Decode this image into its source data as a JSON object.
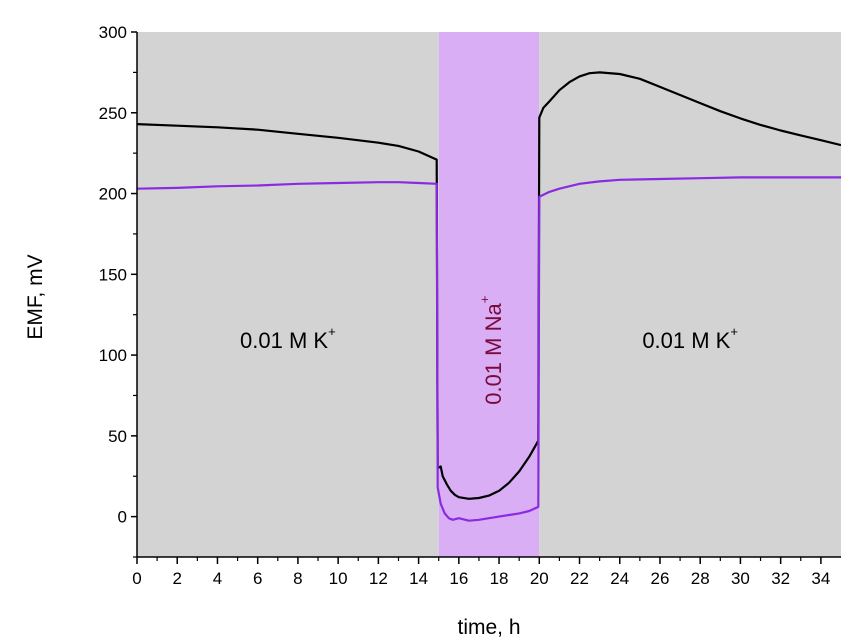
{
  "chart_data": {
    "type": "line",
    "xlabel": "time, h",
    "ylabel": "EMF, mV",
    "xlim": [
      0,
      35
    ],
    "ylim": [
      -25,
      300
    ],
    "x_ticks": [
      0,
      2,
      4,
      6,
      8,
      10,
      12,
      14,
      16,
      18,
      20,
      22,
      24,
      26,
      28,
      30,
      32,
      34
    ],
    "y_ticks": [
      0,
      50,
      100,
      150,
      200,
      250,
      300
    ],
    "grid": false,
    "regions": [
      {
        "x0": 0,
        "x1": 15,
        "label": "0.01 M K",
        "label_sup": "+",
        "color": "#d3d3d3",
        "text_color": "#000000",
        "orientation": "horizontal",
        "label_y": 108
      },
      {
        "x0": 15,
        "x1": 20,
        "label": "0.01 M Na",
        "label_sup": "+",
        "color": "#d9aef5",
        "text_color": "#7a0a3e",
        "orientation": "vertical",
        "label_y": 103
      },
      {
        "x0": 20,
        "x1": 35,
        "label": "0.01 M K",
        "label_sup": "+",
        "color": "#d3d3d3",
        "text_color": "#000000",
        "orientation": "horizontal",
        "label_y": 108
      }
    ],
    "series": [
      {
        "color": "#000000",
        "points": [
          [
            0,
            243
          ],
          [
            2,
            242
          ],
          [
            4,
            241
          ],
          [
            6,
            239.5
          ],
          [
            8,
            237
          ],
          [
            10,
            234.5
          ],
          [
            12,
            231.5
          ],
          [
            13,
            229.5
          ],
          [
            14,
            226
          ],
          [
            14.9,
            221
          ],
          [
            14.95,
            30
          ],
          [
            15.1,
            31
          ],
          [
            15.2,
            25
          ],
          [
            15.4,
            20
          ],
          [
            15.6,
            16
          ],
          [
            15.8,
            13.5
          ],
          [
            16,
            12
          ],
          [
            16.5,
            11
          ],
          [
            17,
            11.5
          ],
          [
            17.5,
            13
          ],
          [
            18,
            16
          ],
          [
            18.5,
            21
          ],
          [
            19,
            28
          ],
          [
            19.5,
            37
          ],
          [
            19.95,
            47
          ],
          [
            20,
            247
          ],
          [
            20.2,
            253
          ],
          [
            20.5,
            257
          ],
          [
            21,
            264
          ],
          [
            21.5,
            269
          ],
          [
            22,
            272.5
          ],
          [
            22.5,
            274.5
          ],
          [
            23,
            275
          ],
          [
            24,
            274
          ],
          [
            25,
            271
          ],
          [
            26,
            266
          ],
          [
            27,
            261
          ],
          [
            28,
            256
          ],
          [
            29,
            251
          ],
          [
            30,
            246.5
          ],
          [
            31,
            242.5
          ],
          [
            32,
            239
          ],
          [
            33,
            236
          ],
          [
            34,
            233
          ],
          [
            35,
            230
          ]
        ]
      },
      {
        "color": "#8a2be2",
        "points": [
          [
            0,
            203
          ],
          [
            2,
            203.5
          ],
          [
            4,
            204.5
          ],
          [
            6,
            205
          ],
          [
            8,
            206
          ],
          [
            10,
            206.5
          ],
          [
            12,
            207
          ],
          [
            13,
            207
          ],
          [
            14,
            206.5
          ],
          [
            14.9,
            206
          ],
          [
            14.95,
            18
          ],
          [
            15.1,
            8
          ],
          [
            15.3,
            2
          ],
          [
            15.5,
            -1
          ],
          [
            15.7,
            -2
          ],
          [
            16,
            -1
          ],
          [
            16.5,
            -2.5
          ],
          [
            17,
            -2
          ],
          [
            17.5,
            -1
          ],
          [
            18,
            0
          ],
          [
            18.5,
            1
          ],
          [
            19,
            2
          ],
          [
            19.5,
            3.5
          ],
          [
            19.95,
            6
          ],
          [
            20,
            198
          ],
          [
            20.5,
            201
          ],
          [
            21,
            203
          ],
          [
            22,
            206
          ],
          [
            23,
            207.5
          ],
          [
            24,
            208.5
          ],
          [
            26,
            209
          ],
          [
            28,
            209.5
          ],
          [
            30,
            210
          ],
          [
            32,
            210
          ],
          [
            35,
            210
          ]
        ]
      }
    ]
  }
}
